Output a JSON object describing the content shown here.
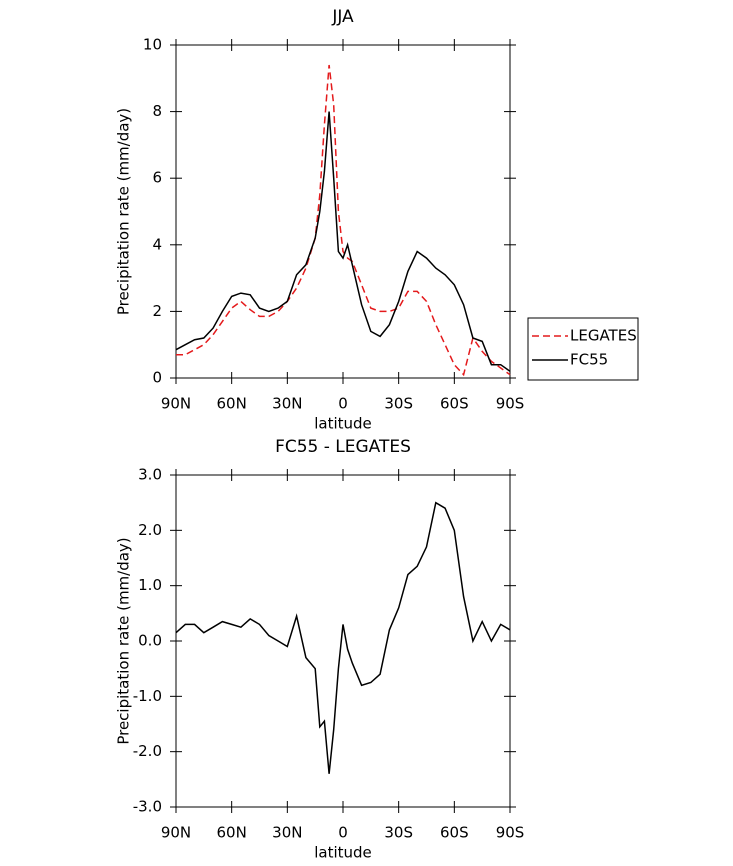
{
  "chart_data": [
    {
      "type": "line",
      "title": "JJA",
      "xlabel": "latitude",
      "ylabel": "Precipitation rate (mm/day)",
      "x": [
        90,
        85,
        80,
        75,
        70,
        65,
        60,
        55,
        50,
        45,
        40,
        35,
        30,
        25,
        20,
        15,
        12.5,
        10,
        7.5,
        5,
        2.5,
        0,
        -2.5,
        -5,
        -10,
        -15,
        -20,
        -25,
        -30,
        -35,
        -40,
        -45,
        -50,
        -55,
        -60,
        -65,
        -70,
        -75,
        -80,
        -85,
        -90
      ],
      "series": [
        {
          "name": "LEGATES",
          "color": "#e41a1c",
          "dash": true,
          "values": [
            0.7,
            0.7,
            0.85,
            1.0,
            1.3,
            1.7,
            2.1,
            2.3,
            2.05,
            1.85,
            1.85,
            2.0,
            2.3,
            2.7,
            3.3,
            4.2,
            5.5,
            7.6,
            9.4,
            8.2,
            5.0,
            3.8,
            3.6,
            3.5,
            2.8,
            2.1,
            2.0,
            2.0,
            2.1,
            2.6,
            2.6,
            2.3,
            1.6,
            1.0,
            0.4,
            0.1,
            1.2,
            0.8,
            0.5,
            0.3,
            0.1
          ]
        },
        {
          "name": "FC55",
          "color": "#000000",
          "dash": false,
          "values": [
            0.85,
            1.0,
            1.15,
            1.2,
            1.5,
            2.0,
            2.45,
            2.55,
            2.5,
            2.1,
            2.0,
            2.1,
            2.3,
            3.1,
            3.4,
            4.2,
            5.0,
            6.2,
            8.0,
            6.0,
            3.8,
            3.6,
            4.0,
            3.4,
            2.2,
            1.4,
            1.25,
            1.6,
            2.3,
            3.2,
            3.8,
            3.6,
            3.3,
            3.1,
            2.8,
            2.2,
            1.2,
            1.1,
            0.4,
            0.4,
            0.2
          ]
        }
      ],
      "xlim": [
        90,
        -90
      ],
      "xticks": [
        {
          "value": 90,
          "label": "90N"
        },
        {
          "value": 60,
          "label": "60N"
        },
        {
          "value": 30,
          "label": "30N"
        },
        0,
        {
          "value": -30,
          "label": "30S"
        },
        {
          "value": -60,
          "label": "60S"
        },
        {
          "value": -90,
          "label": "90S"
        }
      ],
      "ylim": [
        0,
        10
      ],
      "yticks": [
        0,
        2,
        4,
        6,
        8,
        10
      ],
      "legend": "right"
    },
    {
      "type": "line",
      "title": "FC55 - LEGATES",
      "xlabel": "latitude",
      "ylabel": "Precipitation rate (mm/day)",
      "x": [
        90,
        85,
        80,
        75,
        70,
        65,
        60,
        55,
        50,
        45,
        40,
        35,
        30,
        25,
        20,
        15,
        12.5,
        10,
        7.5,
        5,
        2.5,
        0,
        -2.5,
        -5,
        -10,
        -15,
        -20,
        -25,
        -30,
        -35,
        -40,
        -45,
        -50,
        -55,
        -60,
        -65,
        -70,
        -75,
        -80,
        -85,
        -90
      ],
      "color": "#000000",
      "values": [
        0.15,
        0.3,
        0.3,
        0.15,
        0.25,
        0.35,
        0.3,
        0.25,
        0.4,
        0.3,
        0.1,
        0.0,
        -0.1,
        0.45,
        -0.3,
        -0.5,
        -1.55,
        -1.45,
        -2.4,
        -1.6,
        -0.5,
        0.3,
        -0.15,
        -0.4,
        -0.8,
        -0.75,
        -0.6,
        0.2,
        0.6,
        1.2,
        1.35,
        1.7,
        2.5,
        2.4,
        2.0,
        0.8,
        0.0,
        0.35,
        0.0,
        0.3,
        0.2
      ],
      "xlim": [
        90,
        -90
      ],
      "xticks": [
        {
          "value": 90,
          "label": "90N"
        },
        {
          "value": 60,
          "label": "60N"
        },
        {
          "value": 30,
          "label": "30N"
        },
        0,
        {
          "value": -30,
          "label": "30S"
        },
        {
          "value": -60,
          "label": "60S"
        },
        {
          "value": -90,
          "label": "90S"
        }
      ],
      "ylim": [
        -3,
        3
      ],
      "yticks": [
        {
          "value": -3,
          "label": "-3.0"
        },
        {
          "value": -2,
          "label": "-2.0"
        },
        {
          "value": -1,
          "label": "-1.0"
        },
        {
          "value": 0,
          "label": "0.0"
        },
        {
          "value": 1,
          "label": "1.0"
        },
        {
          "value": 2,
          "label": "2.0"
        },
        {
          "value": 3,
          "label": "3.0"
        }
      ]
    }
  ]
}
